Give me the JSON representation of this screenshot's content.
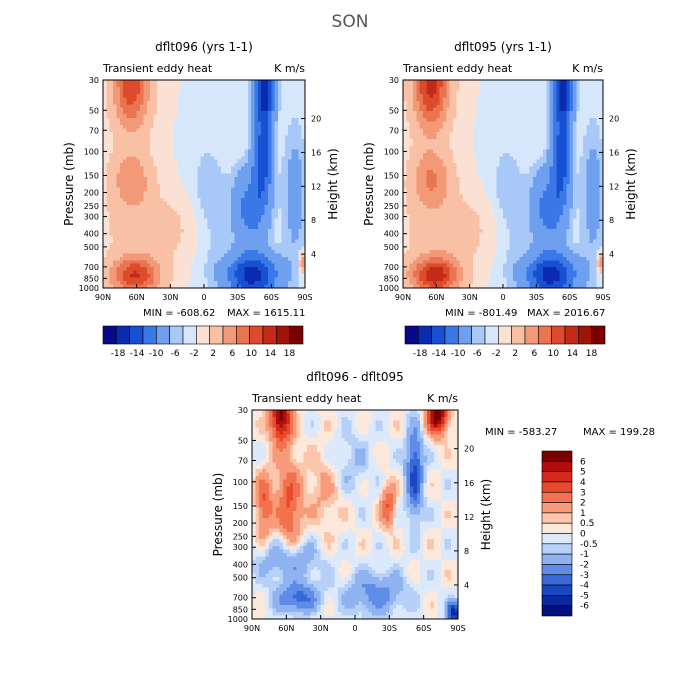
{
  "figure_title": "SON",
  "chart_data": [
    {
      "type": "heatmap",
      "title": "dflt096 (yrs 1-1)",
      "left_label": "Transient eddy heat",
      "units": "K m/s",
      "ylabel": "Pressure (mb)",
      "ylabel_right": "Height (km)",
      "x_ticks": [
        "90N",
        "60N",
        "30N",
        "0",
        "30S",
        "60S",
        "90S"
      ],
      "y_ticks": [
        "30",
        "50",
        "70",
        "100",
        "150",
        "200",
        "250",
        "300",
        "400",
        "500",
        "700",
        "850",
        "1000"
      ],
      "right_ticks": [
        "20",
        "16",
        "12",
        "8",
        "4"
      ],
      "min_label": "MIN = -608.62",
      "max_label": "MAX = 1615.11",
      "colorbar_labels": [
        "-18",
        "-14",
        "-10",
        "-6",
        "-2",
        "2",
        "6",
        "10",
        "14",
        "18"
      ]
    },
    {
      "type": "heatmap",
      "title": "dflt095 (yrs 1-1)",
      "left_label": "Transient eddy heat",
      "units": "K m/s",
      "ylabel": "Pressure (mb)",
      "ylabel_right": "Height (km)",
      "x_ticks": [
        "90N",
        "60N",
        "30N",
        "0",
        "30S",
        "60S",
        "90S"
      ],
      "y_ticks": [
        "30",
        "50",
        "70",
        "100",
        "150",
        "200",
        "250",
        "300",
        "400",
        "500",
        "700",
        "850",
        "1000"
      ],
      "right_ticks": [
        "20",
        "16",
        "12",
        "8",
        "4"
      ],
      "min_label": "MIN = -801.49",
      "max_label": "MAX = 2016.67",
      "colorbar_labels": [
        "-18",
        "-14",
        "-10",
        "-6",
        "-2",
        "2",
        "6",
        "10",
        "14",
        "18"
      ]
    },
    {
      "type": "heatmap",
      "title": "dflt096 - dflt095",
      "left_label": "Transient eddy heat",
      "units": "K m/s",
      "ylabel": "Pressure (mb)",
      "ylabel_right": "Height (km)",
      "x_ticks": [
        "90N",
        "60N",
        "30N",
        "0",
        "30S",
        "60S",
        "90S"
      ],
      "y_ticks": [
        "30",
        "50",
        "70",
        "100",
        "150",
        "200",
        "250",
        "300",
        "400",
        "500",
        "700",
        "850",
        "1000"
      ],
      "right_ticks": [
        "20",
        "16",
        "12",
        "8",
        "4"
      ],
      "min_label": "MIN = -583.27",
      "max_label": "MAX = 199.28",
      "colorbar_labels": [
        "6",
        "5",
        "4",
        "3",
        "2",
        "1",
        "0.5",
        "0",
        "-0.5",
        "-1",
        "-2",
        "-3",
        "-4",
        "-5",
        "-6"
      ]
    }
  ],
  "colors": {
    "main_scale": [
      "#08088a",
      "#0a2ab0",
      "#1850d2",
      "#3a78e8",
      "#6fa0f0",
      "#a8c8f8",
      "#d6e6fb",
      "#fbe1d3",
      "#f8c0a4",
      "#f29a78",
      "#ea7350",
      "#dd4a2c",
      "#c42a18",
      "#a01408",
      "#7a0000"
    ],
    "diff_scale": [
      "#7d0000",
      "#b00d0d",
      "#d42a1c",
      "#e84a2e",
      "#f2714e",
      "#f89b7a",
      "#fbc6ac",
      "#fde9dc",
      "#dce9fb",
      "#b7d0f7",
      "#8fb2f0",
      "#5f8ce6",
      "#3868da",
      "#1a46c2",
      "#0a28a0",
      "#02127a"
    ]
  }
}
